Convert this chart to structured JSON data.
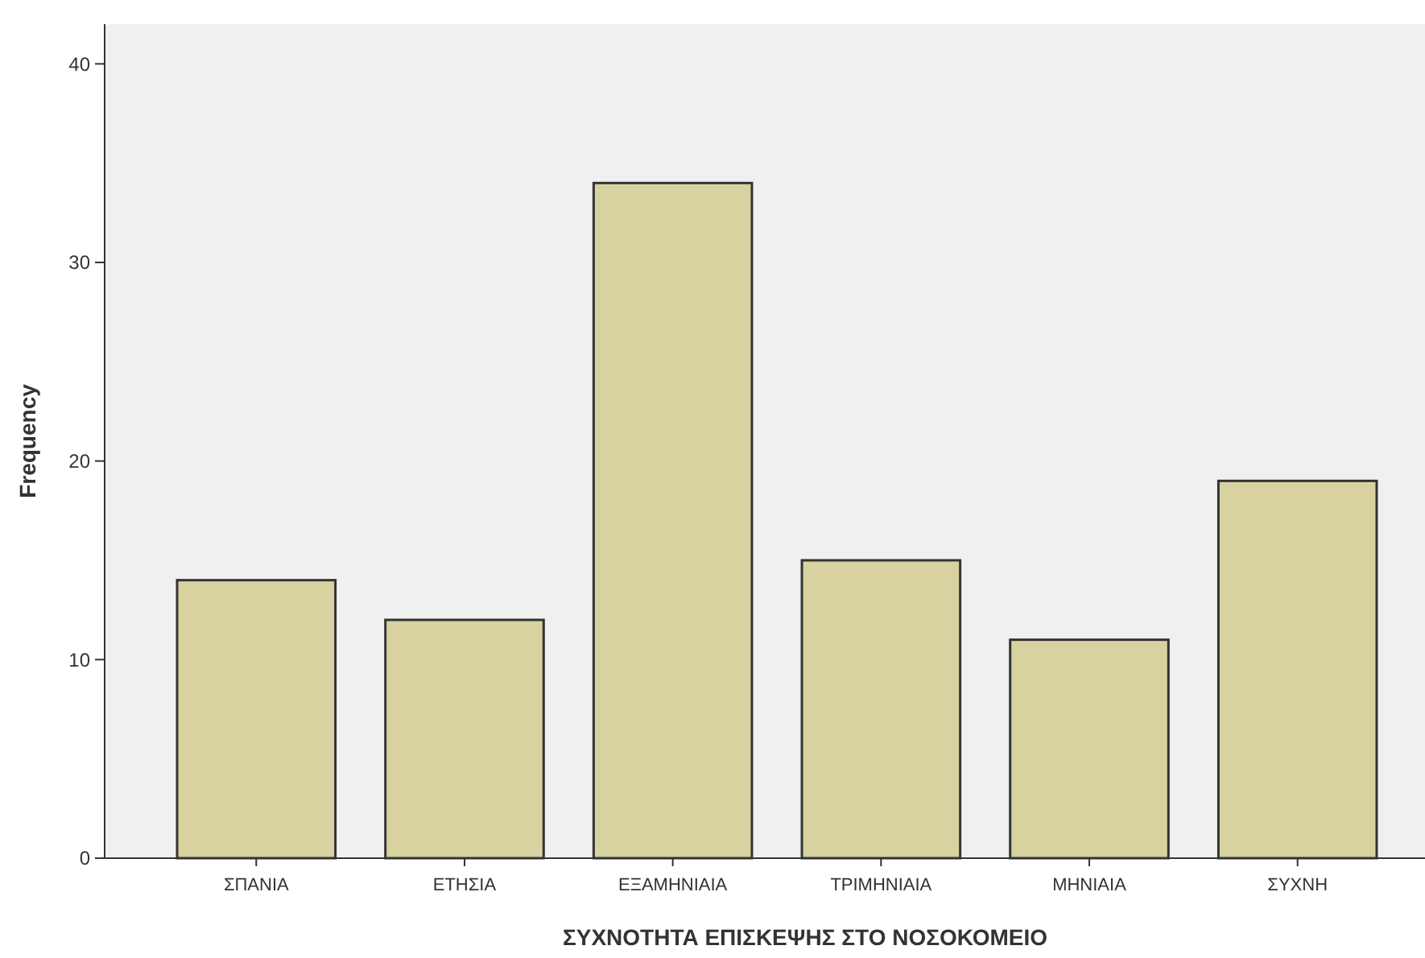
{
  "chart_data": {
    "type": "bar",
    "xlabel": "ΣΥΧΝΟΤΗΤΑ ΕΠΙΣΚΕΨΗΣ ΣΤΟ ΝΟΣΟΚΟΜΕΙΟ",
    "ylabel": "Frequency",
    "categories": [
      "ΣΠΑΝΙΑ",
      "ΕΤΗΣΙΑ",
      "ΕΞΑΜΗΝΙΑΙΑ",
      "ΤΡΙΜΗΝΙΑΙΑ",
      "ΜΗΝΙΑΙΑ",
      "ΣΥΧΝΗ"
    ],
    "values": [
      14,
      12,
      34,
      15,
      11,
      19
    ],
    "color": "#d8d2a0",
    "ylim": [
      0,
      42
    ],
    "yticks": [
      0,
      10,
      20,
      30,
      40
    ],
    "grid": false
  }
}
